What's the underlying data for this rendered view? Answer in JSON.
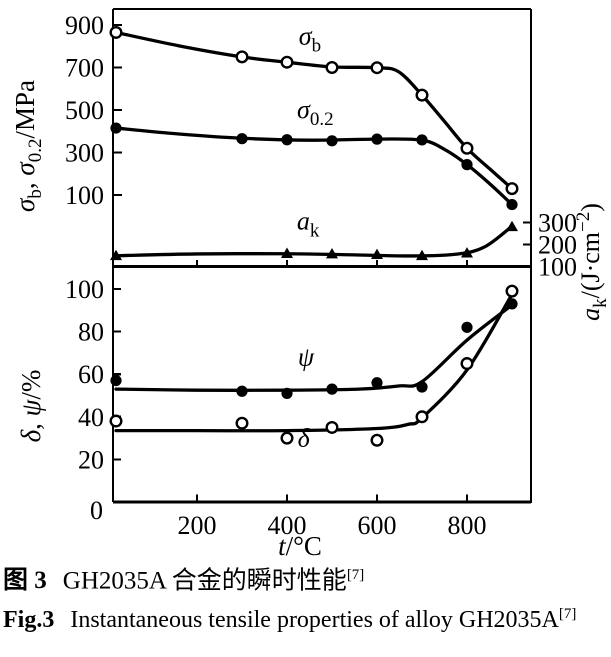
{
  "caption": {
    "cn": {
      "label": "图 3",
      "text": "GH2035A 合金的瞬时性能",
      "ref": "[7]"
    },
    "en": {
      "label": "Fig.3",
      "text": "Instantaneous tensile properties of alloy GH2035A",
      "ref": "[7]"
    }
  },
  "colors": {
    "ink": "#000000",
    "paper": "#ffffff"
  },
  "axis_label_parts": {
    "top_left": [
      {
        "t": "σ",
        "i": 1
      },
      {
        "t": "b",
        "sub": 1
      },
      {
        "t": ", "
      },
      {
        "t": "σ",
        "i": 1
      },
      {
        "t": "0.2",
        "sub": 1
      },
      {
        "t": "/MPa"
      }
    ],
    "right": [
      {
        "t": "a",
        "i": 1
      },
      {
        "t": "k",
        "sub": 1
      },
      {
        "t": "/(J·cm"
      },
      {
        "t": "−2",
        "sup": 1
      },
      {
        "t": ")"
      }
    ],
    "bottom_left": [
      {
        "t": "δ",
        "i": 1
      },
      {
        "t": ", "
      },
      {
        "t": "ψ",
        "i": 1
      },
      {
        "t": "/%"
      }
    ],
    "x": [
      {
        "t": "t",
        "i": 1
      },
      {
        "t": "/°C"
      }
    ]
  },
  "chart_data": [
    {
      "type": "line",
      "panel": "top",
      "xlabel": "t/°C",
      "ylabel_left": "σb, σ0.2/MPa",
      "ylabel_right": "ak/(J·cm−2)",
      "xlim": [
        0,
        950
      ],
      "xticks": [
        200,
        400,
        600,
        800
      ],
      "ylim_left": [
        100,
        900
      ],
      "yticks_left": [
        100,
        300,
        500,
        700,
        900
      ],
      "ylim_right": [
        100,
        300
      ],
      "yticks_right": [
        100,
        200,
        300
      ],
      "grid": false,
      "legend": "inline-curve-labels",
      "series": [
        {
          "id": "sigma-b",
          "name": "σb",
          "axis": "left",
          "marker": "open-circle",
          "label_parts": [
            {
              "t": "σ",
              "i": 1
            },
            {
              "t": "b",
              "sub": 1
            }
          ],
          "x": [
            20,
            300,
            400,
            500,
            600,
            700,
            800,
            900
          ],
          "y": [
            865,
            750,
            725,
            700,
            699,
            570,
            320,
            130
          ],
          "curve": [
            [
              20,
              865
            ],
            [
              160,
              802
            ],
            [
              300,
              750
            ],
            [
              400,
              725
            ],
            [
              500,
              703
            ],
            [
              600,
              699
            ],
            [
              648,
              680
            ],
            [
              700,
              570
            ],
            [
              750,
              446
            ],
            [
              800,
              320
            ],
            [
              850,
              224
            ],
            [
              900,
              130
            ]
          ],
          "label_at": [
            451,
            808
          ]
        },
        {
          "id": "sigma-02",
          "name": "σ0.2",
          "axis": "left",
          "marker": "filled-circle",
          "label_parts": [
            {
              "t": "σ",
              "i": 1
            },
            {
              "t": "0.2",
              "sub": 1
            }
          ],
          "x": [
            20,
            300,
            400,
            500,
            600,
            700,
            800,
            900
          ],
          "y": [
            415,
            365,
            360,
            355,
            363,
            359,
            243,
            55
          ],
          "curve": [
            [
              20,
              415
            ],
            [
              160,
              387
            ],
            [
              300,
              367
            ],
            [
              450,
              358
            ],
            [
              600,
              363
            ],
            [
              700,
              358
            ],
            [
              752,
              312
            ],
            [
              800,
              243
            ],
            [
              852,
              150
            ],
            [
              900,
              55
            ]
          ],
          "label_at": [
            463,
            462
          ]
        },
        {
          "id": "a-k",
          "name": "ak",
          "axis": "right",
          "marker": "filled-triangle",
          "label_parts": [
            {
              "t": "a",
              "i": 1
            },
            {
              "t": "k",
              "sub": 1
            }
          ],
          "x": [
            20,
            400,
            500,
            600,
            700,
            800,
            900
          ],
          "y": [
            148,
            158,
            156,
            153,
            148,
            160,
            280
          ],
          "curve": [
            [
              20,
              149
            ],
            [
              200,
              157
            ],
            [
              400,
              158
            ],
            [
              550,
              153
            ],
            [
              680,
              148
            ],
            [
              780,
              157
            ],
            [
              840,
              190
            ],
            [
              900,
              283
            ]
          ],
          "label_at": [
            447,
            268
          ]
        }
      ]
    },
    {
      "type": "line",
      "panel": "bottom",
      "xlabel": "t/°C",
      "ylabel_left": "δ, ψ/%",
      "xlim": [
        0,
        950
      ],
      "xticks": [
        200,
        400,
        600,
        800
      ],
      "ylim_left": [
        0,
        100
      ],
      "yticks_left": [
        20,
        40,
        60,
        80,
        100
      ],
      "origin_label": "0",
      "grid": false,
      "legend": "inline-curve-labels",
      "series": [
        {
          "id": "psi",
          "name": "ψ",
          "axis": "left",
          "marker": "filled-circle",
          "label_parts": [
            {
              "t": "ψ",
              "i": 1
            }
          ],
          "x": [
            20,
            300,
            400,
            500,
            600,
            700,
            800,
            900
          ],
          "y": [
            57,
            52,
            51,
            53,
            56,
            54,
            82,
            93
          ],
          "curve": [
            [
              20,
              53
            ],
            [
              200,
              52.5
            ],
            [
              400,
              52.5
            ],
            [
              560,
              53
            ],
            [
              650,
              54.5
            ],
            [
              700,
              56.5
            ],
            [
              800,
              76
            ],
            [
              900,
              92.5
            ]
          ],
          "label_at": [
            442,
            64
          ]
        },
        {
          "id": "delta",
          "name": "δ",
          "axis": "left",
          "marker": "open-circle",
          "label_parts": [
            {
              "t": "δ",
              "i": 1
            }
          ],
          "x": [
            20,
            300,
            400,
            500,
            600,
            700,
            800,
            900
          ],
          "y": [
            38,
            37,
            30,
            35,
            29,
            40,
            65,
            99
          ],
          "curve": [
            [
              20,
              33.5
            ],
            [
              200,
              33.5
            ],
            [
              400,
              33.5
            ],
            [
              600,
              34.5
            ],
            [
              670,
              36.5
            ],
            [
              700,
              39.5
            ],
            [
              800,
              62
            ],
            [
              900,
              97.5
            ]
          ],
          "label_at": [
            437,
            26
          ]
        }
      ]
    }
  ]
}
